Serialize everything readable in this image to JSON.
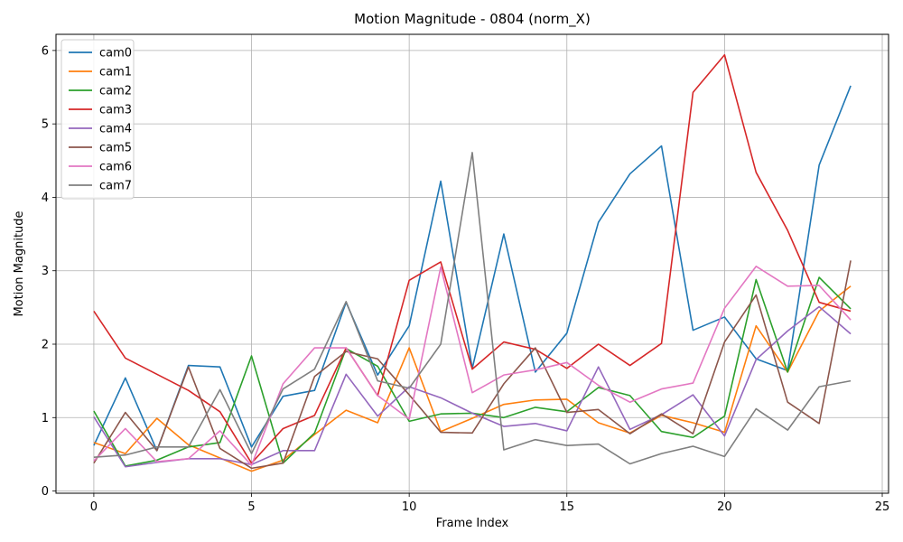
{
  "chart_data": {
    "type": "line",
    "title": "Motion Magnitude - 0804 (norm_X)",
    "xlabel": "Frame Index",
    "ylabel": "Motion Magnitude",
    "xlim": [
      -1.2,
      25.2
    ],
    "ylim": [
      -0.03,
      6.22
    ],
    "xticks": [
      0,
      5,
      10,
      15,
      20,
      25
    ],
    "yticks": [
      0,
      1,
      2,
      3,
      4,
      5,
      6
    ],
    "grid": true,
    "legend_position": "top-left",
    "x": [
      0,
      1,
      2,
      3,
      4,
      5,
      6,
      7,
      8,
      9,
      10,
      11,
      12,
      13,
      14,
      15,
      16,
      17,
      18,
      19,
      20,
      21,
      22,
      23,
      24
    ],
    "series": [
      {
        "name": "cam0",
        "color": "#1f77b4",
        "values": [
          0.62,
          1.54,
          0.55,
          1.71,
          1.69,
          0.6,
          1.29,
          1.37,
          2.57,
          1.58,
          2.25,
          4.22,
          1.67,
          3.5,
          1.62,
          2.15,
          3.66,
          4.32,
          4.7,
          2.19,
          2.37,
          1.8,
          1.64,
          4.44,
          5.52
        ]
      },
      {
        "name": "cam1",
        "color": "#ff7f0e",
        "values": [
          0.66,
          0.51,
          0.99,
          0.63,
          0.45,
          0.27,
          0.42,
          0.77,
          1.1,
          0.93,
          1.95,
          0.81,
          0.99,
          1.18,
          1.24,
          1.25,
          0.93,
          0.79,
          1.03,
          0.93,
          0.8,
          2.25,
          1.62,
          2.45,
          2.79
        ]
      },
      {
        "name": "cam2",
        "color": "#2ca02c",
        "values": [
          1.09,
          0.34,
          0.42,
          0.6,
          0.66,
          1.84,
          0.38,
          0.79,
          1.94,
          1.7,
          0.95,
          1.05,
          1.06,
          1.0,
          1.14,
          1.08,
          1.41,
          1.3,
          0.81,
          0.73,
          1.02,
          2.88,
          1.62,
          2.91,
          2.48
        ]
      },
      {
        "name": "cam3",
        "color": "#d62728",
        "values": [
          2.45,
          1.81,
          1.59,
          1.37,
          1.08,
          0.38,
          0.85,
          1.03,
          1.95,
          1.3,
          2.87,
          3.12,
          1.66,
          2.03,
          1.93,
          1.67,
          2.0,
          1.71,
          2.01,
          5.43,
          5.94,
          4.34,
          3.55,
          2.57,
          2.45
        ]
      },
      {
        "name": "cam4",
        "color": "#9467bd",
        "values": [
          1.01,
          0.33,
          0.39,
          0.44,
          0.44,
          0.36,
          0.55,
          0.55,
          1.59,
          1.02,
          1.42,
          1.27,
          1.06,
          0.88,
          0.92,
          0.82,
          1.69,
          0.84,
          1.04,
          1.31,
          0.75,
          1.79,
          2.18,
          2.51,
          2.14
        ]
      },
      {
        "name": "cam5",
        "color": "#8c564b",
        "values": [
          0.38,
          1.07,
          0.55,
          1.69,
          0.58,
          0.31,
          0.38,
          1.56,
          1.9,
          1.8,
          1.31,
          0.8,
          0.79,
          1.46,
          1.95,
          1.07,
          1.11,
          0.78,
          1.05,
          0.78,
          2.03,
          2.67,
          1.21,
          0.92,
          3.14
        ]
      },
      {
        "name": "cam6",
        "color": "#e377c2",
        "values": [
          0.41,
          0.85,
          0.4,
          0.44,
          0.82,
          0.35,
          1.46,
          1.95,
          1.95,
          1.3,
          0.98,
          3.05,
          1.34,
          1.58,
          1.65,
          1.75,
          1.44,
          1.21,
          1.39,
          1.47,
          2.49,
          3.06,
          2.79,
          2.8,
          2.33
        ]
      },
      {
        "name": "cam7",
        "color": "#7f7f7f",
        "values": [
          0.46,
          0.49,
          0.6,
          0.6,
          1.38,
          0.51,
          1.39,
          1.66,
          2.58,
          1.5,
          1.4,
          2.0,
          4.61,
          0.56,
          0.7,
          0.62,
          0.64,
          0.37,
          0.51,
          0.61,
          0.47,
          1.12,
          0.83,
          1.42,
          1.5
        ]
      }
    ]
  }
}
